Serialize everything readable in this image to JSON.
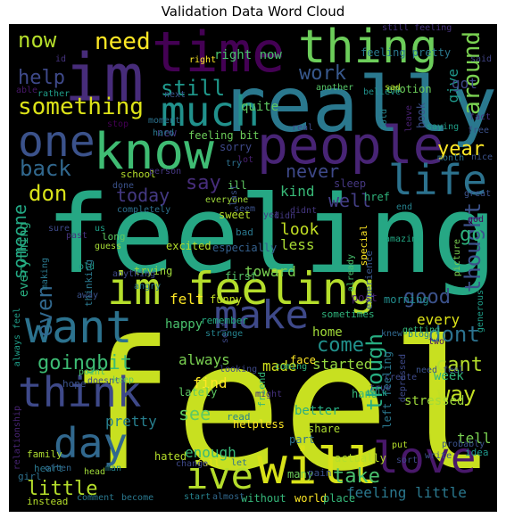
{
  "chart_data": {
    "type": "wordcloud",
    "title": "Validation Data Word Cloud",
    "background": "#000000",
    "colormap": "viridis",
    "words": [
      {
        "text": "feel",
        "color": "#c8e020"
      },
      {
        "text": "feeling",
        "color": "#26a784"
      },
      {
        "text": "really",
        "color": "#2a788e"
      },
      {
        "text": "im",
        "color": "#472c7a"
      },
      {
        "text": "time",
        "color": "#440154"
      },
      {
        "text": "thing",
        "color": "#6ccd5a"
      },
      {
        "text": "know",
        "color": "#3fbc73"
      },
      {
        "text": "people",
        "color": "#482475"
      },
      {
        "text": "much",
        "color": "#21918c"
      },
      {
        "text": "one",
        "color": "#3b528b"
      },
      {
        "text": "life",
        "color": "#2c728e"
      },
      {
        "text": "im feeling",
        "color": "#b5de2b"
      },
      {
        "text": "want",
        "color": "#2c728e"
      },
      {
        "text": "make",
        "color": "#3e4989"
      },
      {
        "text": "think",
        "color": "#3e4989"
      },
      {
        "text": "day",
        "color": "#31688e"
      },
      {
        "text": "will",
        "color": "#d8e219"
      },
      {
        "text": "ive",
        "color": "#b5de2b"
      },
      {
        "text": "love",
        "color": "#48186a"
      },
      {
        "text": "need",
        "color": "#fde725"
      },
      {
        "text": "now",
        "color": "#b5de2b"
      },
      {
        "text": "help",
        "color": "#3e4989"
      },
      {
        "text": "something",
        "color": "#dde318"
      },
      {
        "text": "still",
        "color": "#1f988b"
      },
      {
        "text": "work",
        "color": "#38588c"
      },
      {
        "text": "back",
        "color": "#31688e"
      },
      {
        "text": "year",
        "color": "#fde725"
      },
      {
        "text": "around",
        "color": "#7ad151"
      },
      {
        "text": "thought",
        "color": "#3b528b"
      },
      {
        "text": "don",
        "color": "#d8e219"
      },
      {
        "text": "today",
        "color": "#443983"
      },
      {
        "text": "say",
        "color": "#472d7b"
      },
      {
        "text": "never",
        "color": "#3e4989"
      },
      {
        "text": "well",
        "color": "#433e85"
      },
      {
        "text": "go",
        "color": "#2db27d"
      },
      {
        "text": "kind",
        "color": "#38b977"
      },
      {
        "text": "look",
        "color": "#c2df23"
      },
      {
        "text": "less",
        "color": "#a8db34"
      },
      {
        "text": "someone",
        "color": "#22a884"
      },
      {
        "text": "everything",
        "color": "#28ae80"
      },
      {
        "text": "even",
        "color": "#31688e"
      },
      {
        "text": "good",
        "color": "#3b528b"
      },
      {
        "text": "dont",
        "color": "#2c728e"
      },
      {
        "text": "every",
        "color": "#dde318"
      },
      {
        "text": "though",
        "color": "#27ad81"
      },
      {
        "text": "goingbit",
        "color": "#3dbc74"
      },
      {
        "text": "come",
        "color": "#21918c"
      },
      {
        "text": "cant",
        "color": "#b5de2b"
      },
      {
        "text": "way",
        "color": "#c2df23"
      },
      {
        "text": "week",
        "color": "#31b57b"
      },
      {
        "text": "made",
        "color": "#d0e11c"
      },
      {
        "text": "started",
        "color": "#95d840"
      },
      {
        "text": "always",
        "color": "#7ad151"
      },
      {
        "text": "find",
        "color": "#fde725"
      },
      {
        "text": "see",
        "color": "#5ec962"
      },
      {
        "text": "pretty",
        "color": "#277f8e"
      },
      {
        "text": "little",
        "color": "#b5de2b"
      },
      {
        "text": "take",
        "color": "#4ac16d"
      },
      {
        "text": "feeling little",
        "color": "#2a788e"
      },
      {
        "text": "tell",
        "color": "#7ad151"
      },
      {
        "text": "felt",
        "color": "#fde725"
      },
      {
        "text": "happy",
        "color": "#4ac16d"
      },
      {
        "text": "home",
        "color": "#a0da39"
      },
      {
        "text": "toward",
        "color": "#7ad151"
      },
      {
        "text": "enough",
        "color": "#38b977"
      },
      {
        "text": "better",
        "color": "#27ad81"
      },
      {
        "text": "right now",
        "color": "#4ac16d"
      },
      {
        "text": "quite",
        "color": "#5ec962"
      },
      {
        "text": "give",
        "color": "#1f988b"
      },
      {
        "text": "got",
        "color": "#3e4989"
      },
      {
        "text": "feeling pretty",
        "color": "#2a788e"
      },
      {
        "text": "feeling bit",
        "color": "#6ccd5a"
      },
      {
        "text": "emotion",
        "color": "#6ccd5a"
      },
      {
        "text": "another",
        "color": "#56c667"
      },
      {
        "text": "sorry",
        "color": "#3e4989"
      },
      {
        "text": "new",
        "color": "#453781"
      },
      {
        "text": "still feeling",
        "color": "#46327e"
      },
      {
        "text": "said",
        "color": "#414487"
      },
      {
        "text": "right",
        "color": "#fde725"
      },
      {
        "text": "excited",
        "color": "#b5de2b"
      },
      {
        "text": "especially",
        "color": "#34608d"
      },
      {
        "text": "first",
        "color": "#56c667"
      },
      {
        "text": "funny",
        "color": "#c2df23"
      },
      {
        "text": "trying",
        "color": "#9fda3a"
      },
      {
        "text": "anything",
        "color": "#3e4989"
      },
      {
        "text": "post",
        "color": "#481f70"
      },
      {
        "text": "morning",
        "color": "#228d8d"
      },
      {
        "text": "sometimes",
        "color": "#2fb47c"
      },
      {
        "text": "remember",
        "color": "#25ab82"
      },
      {
        "text": "getting",
        "color": "#35b779"
      },
      {
        "text": "face",
        "color": "#fde725"
      },
      {
        "text": "helpless",
        "color": "#fde725"
      },
      {
        "text": "hand",
        "color": "#35b779"
      },
      {
        "text": "stressed",
        "color": "#9fda3a"
      },
      {
        "text": "share",
        "color": "#addc30"
      },
      {
        "text": "part",
        "color": "#2d708e"
      },
      {
        "text": "left feeling",
        "color": "#2a788e"
      },
      {
        "text": "lately",
        "color": "#5ec962"
      },
      {
        "text": "hated",
        "color": "#b5de2b"
      },
      {
        "text": "full",
        "color": "#e5e419"
      },
      {
        "text": "actually",
        "color": "#b5de2b"
      },
      {
        "text": "many",
        "color": "#6ccd5a"
      },
      {
        "text": "without",
        "color": "#35b779"
      },
      {
        "text": "almost",
        "color": "#31688e"
      },
      {
        "text": "start",
        "color": "#26828e"
      },
      {
        "text": "world",
        "color": "#fde725"
      },
      {
        "text": "place",
        "color": "#35b779"
      },
      {
        "text": "idea",
        "color": "#1f978b"
      },
      {
        "text": "fact",
        "color": "#46337f"
      },
      {
        "text": "book",
        "color": "#3b528b"
      },
      {
        "text": "saying",
        "color": "#1f9f88"
      },
      {
        "text": "month",
        "color": "#2d708e"
      },
      {
        "text": "great",
        "color": "#3b528b"
      },
      {
        "text": "god",
        "color": "#46085c"
      },
      {
        "text": "end",
        "color": "#26828e"
      },
      {
        "text": "special",
        "color": "#fde725"
      },
      {
        "text": "experience",
        "color": "#39568c"
      },
      {
        "text": "amazing",
        "color": "#22a884"
      },
      {
        "text": "depressed",
        "color": "#3e4989"
      },
      {
        "text": "blog",
        "color": "#26828e"
      },
      {
        "text": "two",
        "color": "#481467"
      },
      {
        "text": "knew",
        "color": "#31688e"
      },
      {
        "text": "already",
        "color": "#48c16e"
      },
      {
        "text": "didnt",
        "color": "#453781"
      },
      {
        "text": "didn",
        "color": "#443983"
      },
      {
        "text": "href",
        "color": "#2fb47c"
      },
      {
        "text": "sleep",
        "color": "#453781"
      },
      {
        "text": "real",
        "color": "#3e4989"
      },
      {
        "text": "leave",
        "color": "#482071"
      },
      {
        "text": "told",
        "color": "#25858e"
      },
      {
        "text": "sad",
        "color": "#b5de2b"
      },
      {
        "text": "believe",
        "color": "#21918c"
      },
      {
        "text": "next",
        "color": "#38588c"
      },
      {
        "text": "rather",
        "color": "#1f9e89"
      },
      {
        "text": "able",
        "color": "#481769"
      },
      {
        "text": "id",
        "color": "#46337f"
      },
      {
        "text": "moment",
        "color": "#2c728e"
      },
      {
        "text": "stop",
        "color": "#440154"
      },
      {
        "text": "hard",
        "color": "#2a788e"
      },
      {
        "text": "school",
        "color": "#b5de2b"
      },
      {
        "text": "person",
        "color": "#453781"
      },
      {
        "text": "done",
        "color": "#3b528b"
      },
      {
        "text": "completely",
        "color": "#2d708e"
      },
      {
        "text": "everyone",
        "color": "#9fda3a"
      },
      {
        "text": "sure",
        "color": "#3e4989"
      },
      {
        "text": "ill",
        "color": "#5ec962"
      },
      {
        "text": "try",
        "color": "#2d708e"
      },
      {
        "text": "lot",
        "color": "#481f70"
      },
      {
        "text": "last",
        "color": "#3b528b"
      },
      {
        "text": "yet",
        "color": "#443983"
      },
      {
        "text": "sweet",
        "color": "#b5de2b"
      },
      {
        "text": "bad",
        "color": "#2a788e"
      },
      {
        "text": "long",
        "color": "#5ec962"
      },
      {
        "text": "us",
        "color": "#1fa088"
      },
      {
        "text": "guess",
        "color": "#a5db36"
      },
      {
        "text": "past",
        "color": "#46327e"
      },
      {
        "text": "making",
        "color": "#2a788e"
      },
      {
        "text": "thinking",
        "color": "#2a788e"
      },
      {
        "text": "old",
        "color": "#1f988b"
      },
      {
        "text": "angry",
        "color": "#2a788e"
      },
      {
        "text": "away",
        "color": "#3b528b"
      },
      {
        "text": "always feel",
        "color": "#1f9e89"
      },
      {
        "text": "strange",
        "color": "#25838e"
      },
      {
        "text": "point",
        "color": "#4ac16d"
      },
      {
        "text": "doesnt",
        "color": "#3e4989"
      },
      {
        "text": "keep",
        "color": "#5ec962"
      },
      {
        "text": "hope",
        "color": "#3b528b"
      },
      {
        "text": "family",
        "color": "#addc30"
      },
      {
        "text": "heart",
        "color": "#2a788e"
      },
      {
        "text": "girl",
        "color": "#2d708e"
      },
      {
        "text": "often",
        "color": "#31688e"
      },
      {
        "text": "head",
        "color": "#a0da39"
      },
      {
        "text": "man",
        "color": "#26828e"
      },
      {
        "text": "instead",
        "color": "#b5de2b"
      },
      {
        "text": "comment",
        "color": "#2a788e"
      },
      {
        "text": "become",
        "color": "#2a788e"
      },
      {
        "text": "relationship",
        "color": "#482475"
      },
      {
        "text": "read",
        "color": "#25838e"
      },
      {
        "text": "change",
        "color": "#3e4989"
      },
      {
        "text": "let",
        "color": "#2c728e"
      },
      {
        "text": "pain",
        "color": "#3b528b"
      },
      {
        "text": "sort",
        "color": "#3e4989"
      },
      {
        "text": "talk",
        "color": "#1fa088"
      },
      {
        "text": "friend",
        "color": "#35b779"
      },
      {
        "text": "might",
        "color": "#46327e"
      },
      {
        "text": "coming",
        "color": "#2fb47c"
      },
      {
        "text": "looking",
        "color": "#3e4989"
      },
      {
        "text": "free",
        "color": "#3b528b"
      },
      {
        "text": "write",
        "color": "#3b528b"
      },
      {
        "text": "generous",
        "color": "#1f9e89"
      },
      {
        "text": "picture",
        "color": "#7ad151"
      },
      {
        "text": "nice",
        "color": "#3b528b"
      },
      {
        "text": "seem",
        "color": "#3b528b"
      },
      {
        "text": "put",
        "color": "#b5de2b"
      },
      {
        "text": "probably",
        "color": "#3b528b"
      },
      {
        "text": "self",
        "color": "#3e4989"
      },
      {
        "text": "create",
        "color": "#3e4989"
      },
      {
        "text": "need feel",
        "color": "#3b528b"
      },
      {
        "text": "true",
        "color": "#3e4989"
      }
    ]
  }
}
